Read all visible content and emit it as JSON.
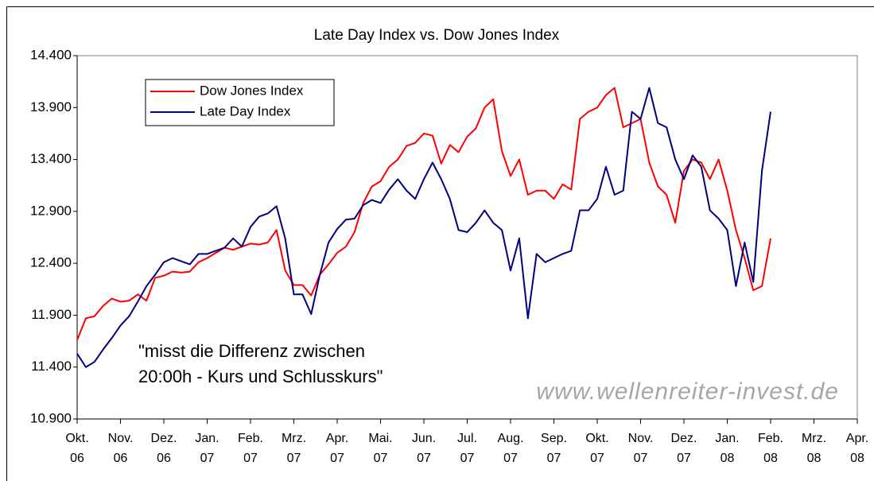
{
  "chart_data": {
    "type": "line",
    "title": "Late Day Index vs. Dow Jones Index",
    "annotation": [
      "\"misst die Differenz zwischen",
      "20:00h - Kurs und Schlusskurs\""
    ],
    "watermark": "www.wellenreiter-invest.de",
    "x": [
      0,
      0.2,
      0.4,
      0.6,
      0.8,
      1,
      1.2,
      1.4,
      1.6,
      1.8,
      2,
      2.2,
      2.4,
      2.6,
      2.8,
      3,
      3.2,
      3.4,
      3.6,
      3.8,
      4,
      4.2,
      4.4,
      4.6,
      4.8,
      5,
      5.2,
      5.4,
      5.6,
      5.8,
      6,
      6.2,
      6.4,
      6.6,
      6.8,
      7,
      7.2,
      7.4,
      7.6,
      7.8,
      8,
      8.2,
      8.4,
      8.6,
      8.8,
      9,
      9.2,
      9.4,
      9.6,
      9.8,
      10,
      10.2,
      10.4,
      10.6,
      10.8,
      11,
      11.2,
      11.4,
      11.6,
      11.8,
      12,
      12.2,
      12.4,
      12.6,
      12.8,
      13,
      13.2,
      13.4,
      13.6,
      13.8,
      14,
      14.2,
      14.4,
      14.6,
      14.8,
      15,
      15.2,
      15.4,
      15.6,
      15.8,
      16
    ],
    "series": [
      {
        "name": "Dow Jones Index",
        "color": "#ff0000",
        "values": [
          11660,
          11870,
          11890,
          11990,
          12060,
          12030,
          12040,
          12100,
          12040,
          12260,
          12280,
          12320,
          12310,
          12320,
          12410,
          12450,
          12500,
          12550,
          12530,
          12560,
          12590,
          12580,
          12600,
          12720,
          12330,
          12190,
          12190,
          12090,
          12290,
          12390,
          12500,
          12560,
          12700,
          12980,
          13140,
          13190,
          13330,
          13400,
          13530,
          13560,
          13650,
          13630,
          13360,
          13540,
          13470,
          13620,
          13700,
          13900,
          13980,
          13480,
          13240,
          13400,
          13060,
          13100,
          13100,
          13020,
          13160,
          13110,
          13790,
          13860,
          13900,
          14020,
          14090,
          13710,
          13750,
          13790,
          13370,
          13140,
          13060,
          12790,
          13290,
          13400,
          13370,
          13210,
          13400,
          13100,
          12720,
          12450,
          12140,
          12180,
          12640
        ]
      },
      {
        "name": "Late Day Index",
        "color": "#000080",
        "values": [
          11530,
          11400,
          11450,
          11570,
          11680,
          11800,
          11890,
          12030,
          12180,
          12290,
          12410,
          12450,
          12420,
          12390,
          12490,
          12490,
          12520,
          12550,
          12640,
          12560,
          12750,
          12850,
          12880,
          12950,
          12640,
          12100,
          12100,
          11910,
          12290,
          12600,
          12730,
          12820,
          12830,
          12960,
          13010,
          12980,
          13110,
          13210,
          13100,
          13020,
          13210,
          13370,
          13210,
          13020,
          12720,
          12700,
          12790,
          12910,
          12790,
          12720,
          12330,
          12640,
          11870,
          12490,
          12410,
          12450,
          12490,
          12520,
          12910,
          12910,
          13020,
          13330,
          13060,
          13100,
          13860,
          13790,
          14090,
          13750,
          13710,
          13400,
          13210,
          13440,
          13330,
          12910,
          12830,
          12720,
          12180,
          12600,
          12220,
          13290,
          13860
        ]
      }
    ],
    "xlim": [
      0,
      18
    ],
    "xticks": [
      {
        "value": 0,
        "label": "Okt. 06"
      },
      {
        "value": 1,
        "label": "Nov. 06"
      },
      {
        "value": 2,
        "label": "Dez. 06"
      },
      {
        "value": 3,
        "label": "Jan. 07"
      },
      {
        "value": 4,
        "label": "Feb. 07"
      },
      {
        "value": 5,
        "label": "Mrz. 07"
      },
      {
        "value": 6,
        "label": "Apr. 07"
      },
      {
        "value": 7,
        "label": "Mai. 07"
      },
      {
        "value": 8,
        "label": "Jun. 07"
      },
      {
        "value": 9,
        "label": "Jul. 07"
      },
      {
        "value": 10,
        "label": "Aug. 07"
      },
      {
        "value": 11,
        "label": "Sep. 07"
      },
      {
        "value": 12,
        "label": "Okt. 07"
      },
      {
        "value": 13,
        "label": "Nov. 07"
      },
      {
        "value": 14,
        "label": "Dez. 07"
      },
      {
        "value": 15,
        "label": "Jan. 08"
      },
      {
        "value": 16,
        "label": "Feb. 08"
      },
      {
        "value": 17,
        "label": "Mrz. 08"
      },
      {
        "value": 18,
        "label": "Apr. 08"
      }
    ],
    "ylim": [
      10900,
      14400
    ],
    "yticks": [
      {
        "value": 10900,
        "label": "10.900"
      },
      {
        "value": 11400,
        "label": "11.400"
      },
      {
        "value": 11900,
        "label": "11.900"
      },
      {
        "value": 12400,
        "label": "12.400"
      },
      {
        "value": 12900,
        "label": "12.900"
      },
      {
        "value": 13400,
        "label": "13.400"
      },
      {
        "value": 13900,
        "label": "13.900"
      },
      {
        "value": 14400,
        "label": "14.400"
      }
    ],
    "grid": false,
    "legend": "upper left"
  }
}
